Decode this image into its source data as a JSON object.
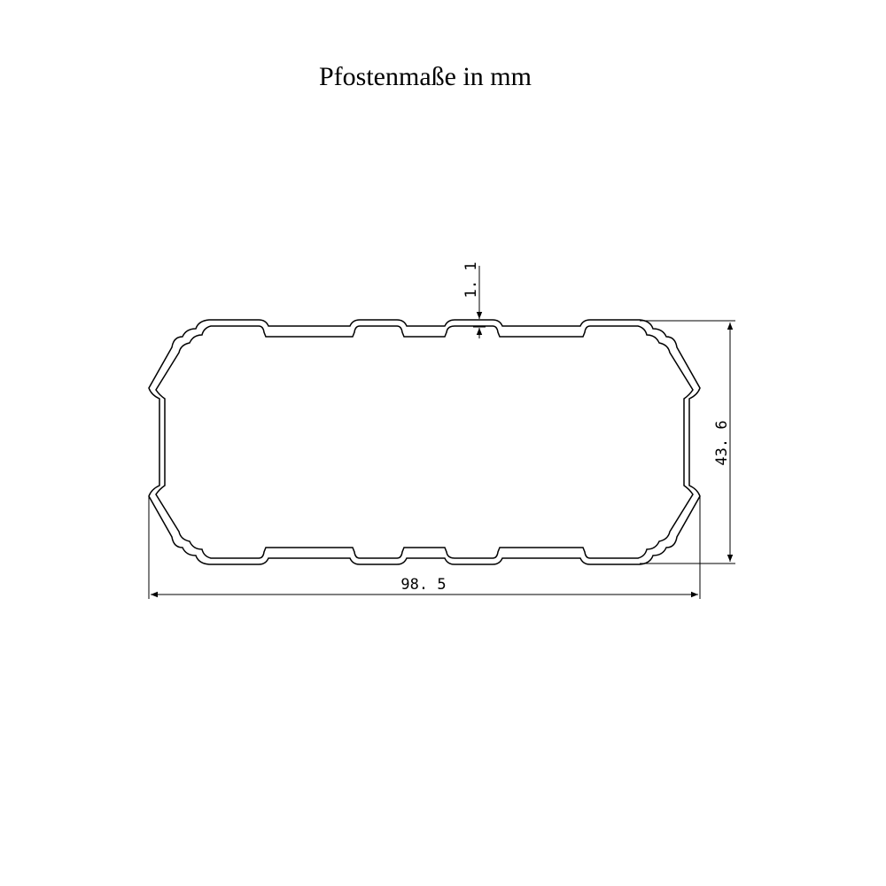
{
  "title": "Pfostenmaße in mm",
  "dimensions": {
    "width": "98. 5",
    "height": "43. 6",
    "wall": "1. 1"
  },
  "colors": {
    "line": "#000000",
    "background": "#ffffff"
  }
}
